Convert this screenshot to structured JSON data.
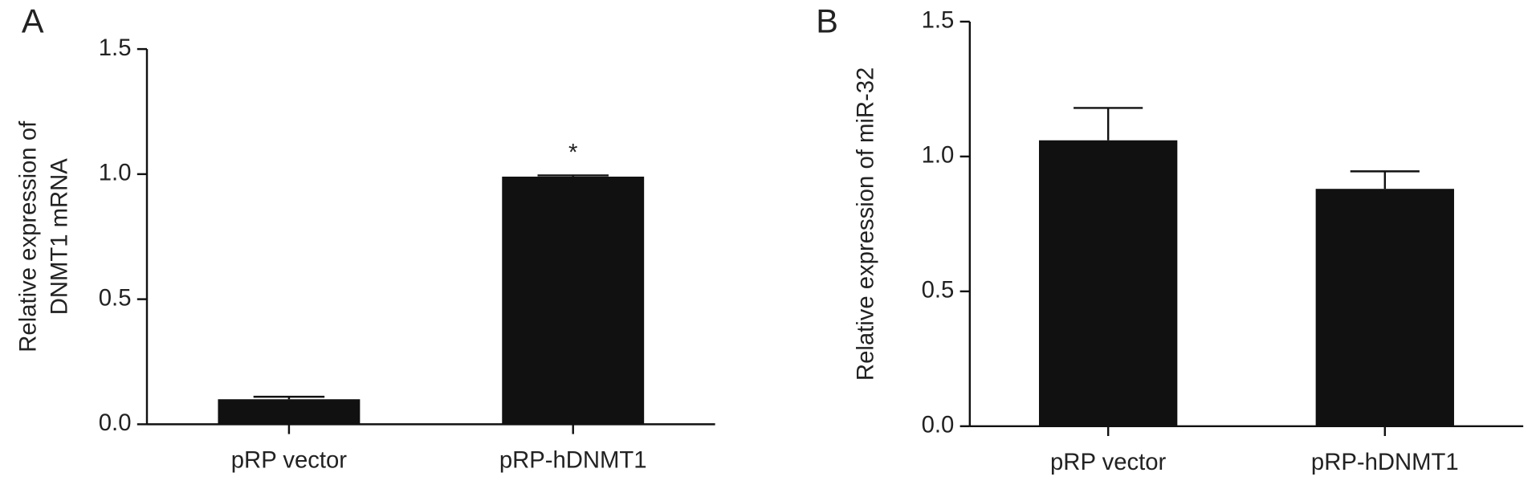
{
  "chart_data": [
    {
      "type": "bar",
      "label": "A",
      "y_label": [
        "Relative expression of",
        "DNMT1 mRNA"
      ],
      "categories": [
        "pRP vector",
        "pRP-hDNMT1"
      ],
      "values": [
        0.1,
        0.99
      ],
      "errors": [
        0.01,
        0.005
      ],
      "color": "#111111",
      "annotation": "*",
      "ylim": [
        0,
        1.5
      ],
      "yticks": [
        {
          "value": 0,
          "label": "0.0"
        },
        0.5,
        {
          "value": 1,
          "label": "1.0"
        },
        1.5
      ]
    },
    {
      "type": "bar",
      "label": "B",
      "y_label": [
        "Relative expression of miR-32"
      ],
      "categories": [
        "pRP vector",
        "pRP-hDNMT1"
      ],
      "values": [
        1.06,
        0.88
      ],
      "errors": [
        0.12,
        0.065
      ],
      "color": "#111111",
      "ylim": [
        0,
        1.5
      ],
      "yticks": [
        {
          "value": 0,
          "label": "0.0"
        },
        0.5,
        {
          "value": 1,
          "label": "1.0"
        },
        1.5
      ]
    }
  ]
}
